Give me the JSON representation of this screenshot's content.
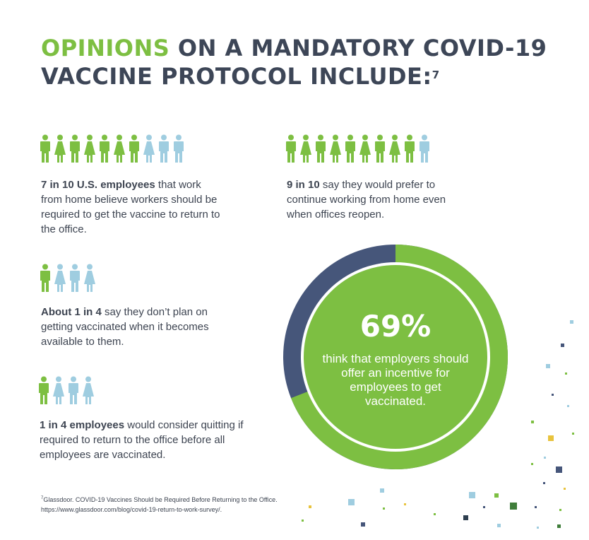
{
  "title": {
    "highlight": "OPINIONS",
    "rest": " ON A MANDATORY COVID-19 VACCINE PROTOCOL INCLUDE:",
    "footnote_ref": "7"
  },
  "stats": [
    {
      "bold": "7 in 10 U.S. employees",
      "text": " that work from home believe workers should be required to get the vaccine to return to the office.",
      "icons": [
        "man",
        "woman",
        "man",
        "woman",
        "man",
        "woman",
        "man",
        "woman",
        "man",
        "man"
      ],
      "highlighted": 7
    },
    {
      "bold": "9 in 10",
      "text": " say they would prefer to continue working from home even when offices reopen.",
      "icons": [
        "man",
        "woman",
        "man",
        "woman",
        "man",
        "woman",
        "man",
        "woman",
        "man",
        "man"
      ],
      "highlighted": 9
    },
    {
      "bold": "About 1 in 4",
      "text": " say they don’t plan on getting vaccinated when it becomes available to them.",
      "icons": [
        "man",
        "woman",
        "man",
        "woman"
      ],
      "highlighted": 1
    },
    {
      "bold": "1 in 4 employees",
      "text": " would consider quitting if required to return to the office before all employees are vaccinated.",
      "icons": [
        "man",
        "woman",
        "man",
        "woman"
      ],
      "highlighted": 1
    }
  ],
  "donut": {
    "percent_label": "69%",
    "percent": 69,
    "description": "think that employers should offer an incentive for employees to get vaccinated."
  },
  "footnote": {
    "marker": "7",
    "line1": "Glassdoor. COVID-19 Vaccines Should be Required Before Returning to the Office.",
    "line2": "https://www.glassdoor.com/blog/covid-19-return-to-work-survey/."
  },
  "colors": {
    "green": "#7dbf42",
    "light_blue": "#9fcde0",
    "navy": "#46567a",
    "text": "#3d4451",
    "gold": "#e8c33d"
  }
}
